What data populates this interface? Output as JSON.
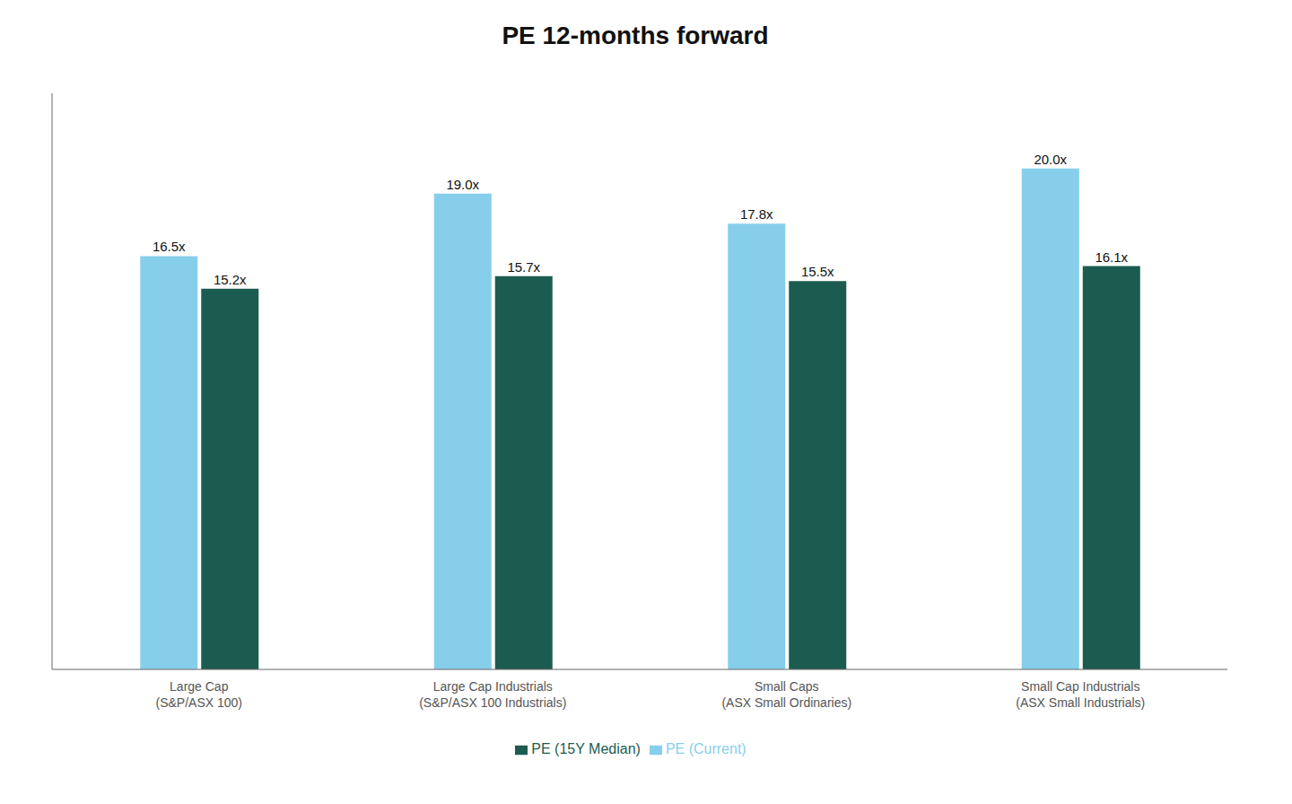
{
  "chart_data": {
    "type": "bar",
    "title": "PE 12-months forward",
    "categories": [
      "Large Cap\n(S&P/ASX 100)",
      "Large Cap Industrials\n(S&P/ASX 100 Industrials)",
      "Small Caps\n(ASX Small Ordinaries)",
      "Small Cap Industrials\n(ASX Small Industrials)"
    ],
    "series": [
      {
        "name": "PE (Current)",
        "color": "#87CEEB",
        "values": [
          16.5,
          19.0,
          17.8,
          20.0
        ],
        "value_labels": [
          "16.5x",
          "19.0x",
          "17.8x",
          "20.0x"
        ]
      },
      {
        "name": "PE (15Y Median)",
        "color": "#1C5C50",
        "values": [
          15.2,
          15.7,
          15.5,
          16.1
        ],
        "value_labels": [
          "15.2x",
          "15.7x",
          "15.5x",
          "16.1x"
        ]
      }
    ],
    "ylim": [
      0,
      23
    ],
    "data_labels": true,
    "tick_labels": "x",
    "grid": false,
    "legend": "bottom"
  }
}
